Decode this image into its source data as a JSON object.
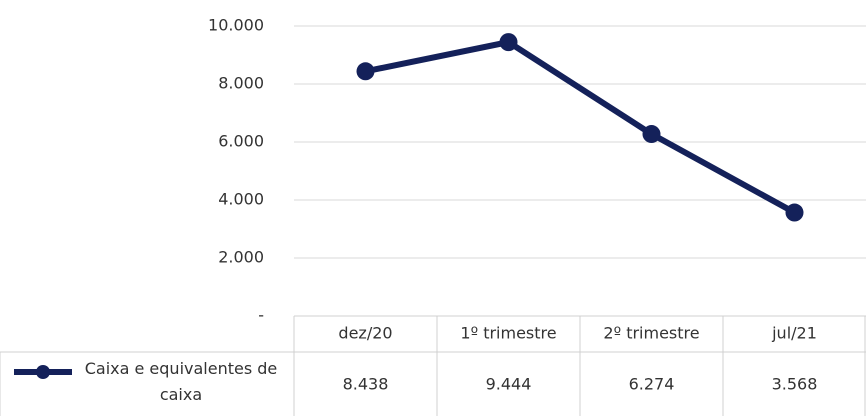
{
  "chart_data": {
    "type": "line",
    "categories": [
      "dez/20",
      "1º trimestre",
      "2º trimestre",
      "jul/21"
    ],
    "series": [
      {
        "name": "Caixa e equivalentes de caixa",
        "color": "#14215a",
        "values": [
          8438,
          9444,
          6274,
          3568
        ],
        "value_labels": [
          "8.438",
          "9.444",
          "6.274",
          "3.568"
        ]
      }
    ],
    "ylim": [
      0,
      10000
    ],
    "yticks": [
      {
        "value": 0,
        "label": "-"
      },
      {
        "value": 2000,
        "label": "2.000"
      },
      {
        "value": 4000,
        "label": "4.000"
      },
      {
        "value": 6000,
        "label": "6.000"
      },
      {
        "value": 8000,
        "label": "8.000"
      },
      {
        "value": 10000,
        "label": "10.000"
      }
    ],
    "grid": true
  }
}
